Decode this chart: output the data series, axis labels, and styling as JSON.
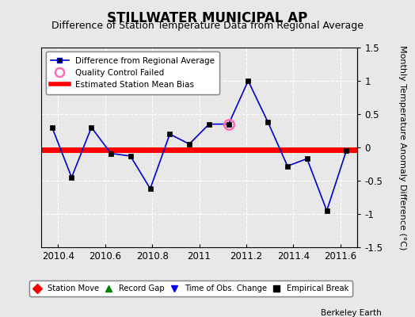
{
  "title": "STILLWATER MUNICIPAL AP",
  "subtitle": "Difference of Station Temperature Data from Regional Average",
  "ylabel": "Monthly Temperature Anomaly Difference (°C)",
  "xlabel_note": "Berkeley Earth",
  "xlim": [
    2010.33,
    2011.67
  ],
  "ylim": [
    -1.5,
    1.5
  ],
  "xticks": [
    2010.4,
    2010.6,
    2010.8,
    2011.0,
    2011.2,
    2011.4,
    2011.6
  ],
  "yticks": [
    -1.5,
    -1.0,
    -0.5,
    0.0,
    0.5,
    1.0,
    1.5
  ],
  "bias_value": -0.04,
  "x_data": [
    2010.375,
    2010.458,
    2010.542,
    2010.625,
    2010.708,
    2010.792,
    2010.875,
    2010.958,
    2011.042,
    2011.125,
    2011.208,
    2011.292,
    2011.375,
    2011.458,
    2011.542,
    2011.625
  ],
  "y_data": [
    0.3,
    -0.45,
    0.3,
    -0.09,
    -0.13,
    -0.62,
    0.2,
    0.05,
    0.35,
    0.35,
    1.0,
    0.38,
    -0.28,
    -0.17,
    -0.95,
    -0.05
  ],
  "qc_failed_x": [
    2011.125
  ],
  "qc_failed_y": [
    0.35
  ],
  "line_color": "#0000CC",
  "marker_color": "#000000",
  "bias_color": "#FF0000",
  "qc_color": "#FF69B4",
  "background_color": "#E8E8E8",
  "grid_color": "#FFFFFF",
  "title_fontsize": 12,
  "subtitle_fontsize": 9,
  "ylabel_fontsize": 8,
  "tick_fontsize": 8.5
}
